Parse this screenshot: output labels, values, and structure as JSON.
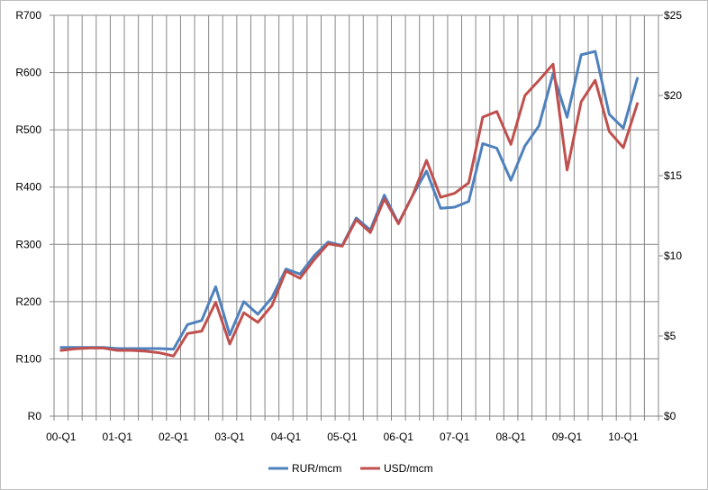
{
  "chart_data": {
    "type": "line",
    "x_tick_labels": [
      "00-Q1",
      "01-Q1",
      "02-Q1",
      "03-Q1",
      "04-Q1",
      "05-Q1",
      "06-Q1",
      "07-Q1",
      "08-Q1",
      "09-Q1",
      "10-Q1"
    ],
    "y_left_ticks": [
      "R0",
      "R100",
      "R200",
      "R300",
      "R400",
      "R500",
      "R600",
      "R700"
    ],
    "y_right_ticks": [
      "$0",
      "$5",
      "$10",
      "$15",
      "$20",
      "$25"
    ],
    "y_left_range": [
      0,
      700
    ],
    "y_right_range": [
      0,
      25
    ],
    "grid": true,
    "legend_position": "bottom",
    "series": [
      {
        "name": "RUR/mcm",
        "axis": "left",
        "color": "#4f81bd",
        "values": [
          120,
          120,
          120,
          120,
          118,
          118,
          118,
          118,
          117,
          160,
          167,
          226,
          142,
          200,
          178,
          207,
          257,
          248,
          280,
          304,
          298,
          346,
          325,
          386,
          337,
          385,
          428,
          363,
          365,
          375,
          476,
          468,
          412,
          472,
          507,
          598,
          522,
          631,
          637,
          527,
          503,
          590
        ]
      },
      {
        "name": "USD/mcm",
        "axis": "right",
        "color": "#c0504d",
        "values": [
          4.1,
          4.2,
          4.25,
          4.25,
          4.1,
          4.1,
          4.05,
          3.95,
          3.75,
          5.15,
          5.3,
          7.1,
          4.5,
          6.45,
          5.85,
          6.9,
          9.05,
          8.6,
          9.75,
          10.75,
          10.6,
          12.25,
          11.45,
          13.55,
          12.0,
          13.75,
          15.95,
          13.65,
          13.9,
          14.55,
          18.65,
          19.0,
          16.95,
          20.0,
          20.95,
          21.95,
          15.35,
          19.6,
          20.95,
          17.75,
          16.75,
          19.5
        ]
      }
    ]
  }
}
